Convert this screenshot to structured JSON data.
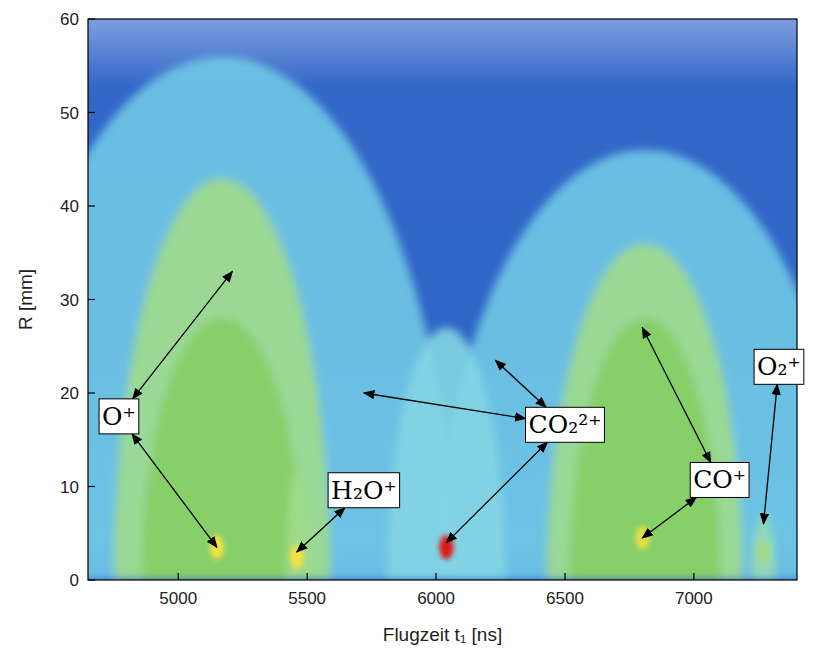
{
  "chart_data": {
    "type": "heatmap",
    "x_label": "Flugzeit t₁ [ns]",
    "y_label": "R [mm]",
    "xlim": [
      4650,
      7400
    ],
    "ylim": [
      0,
      60
    ],
    "xticks": [
      5000,
      5500,
      6000,
      6500,
      7000
    ],
    "yticks": [
      0,
      10,
      20,
      30,
      40,
      50,
      60
    ],
    "arcs": [
      {
        "t_center": 5170,
        "t_half_width": 900,
        "r_max": 56,
        "level": 0.32
      },
      {
        "t_center": 6810,
        "t_half_width": 800,
        "r_max": 46,
        "level": 0.32
      },
      {
        "t_center": 6040,
        "t_half_width": 230,
        "r_max": 27,
        "level": 0.36
      },
      {
        "t_center": 5170,
        "t_half_width": 420,
        "r_max": 43,
        "level": 0.5
      },
      {
        "t_center": 5170,
        "t_half_width": 310,
        "r_max": 28,
        "level": 0.58
      },
      {
        "t_center": 6810,
        "t_half_width": 380,
        "r_max": 36,
        "level": 0.5
      },
      {
        "t_center": 6810,
        "t_half_width": 290,
        "r_max": 28,
        "level": 0.58
      },
      {
        "t_center": 5460,
        "t_half_width": 45,
        "r_max": 12,
        "level": 0.5
      },
      {
        "t_center": 7270,
        "t_half_width": 45,
        "r_max": 7,
        "level": 0.45
      }
    ],
    "spots": [
      {
        "t": 5150,
        "r": 3.5,
        "level": 0.85
      },
      {
        "t": 5460,
        "r": 2.5,
        "level": 0.85
      },
      {
        "t": 6040,
        "r": 3.5,
        "level": 1.0
      },
      {
        "t": 6800,
        "r": 4.5,
        "level": 0.82
      },
      {
        "t": 7270,
        "r": 3,
        "level": 0.5
      }
    ],
    "annotations": [
      {
        "text": "O⁺",
        "t": 4770,
        "r": 17.5,
        "targets": [
          [
            5210,
            33
          ],
          [
            5150,
            3.5
          ]
        ]
      },
      {
        "text": "H₂O⁺",
        "t": 5720,
        "r": 9.6,
        "targets": [
          [
            5460,
            3
          ]
        ]
      },
      {
        "text": "CO₂²⁺",
        "t": 6500,
        "r": 16.6,
        "targets": [
          [
            5720,
            20
          ],
          [
            6230,
            23.5
          ],
          [
            6040,
            4
          ]
        ]
      },
      {
        "text": "CO⁺",
        "t": 7100,
        "r": 10.7,
        "targets": [
          [
            6800,
            27
          ],
          [
            6800,
            4.5
          ]
        ]
      },
      {
        "text": "O₂⁺",
        "t": 7330,
        "r": 22.8,
        "targets": [
          [
            7270,
            6
          ]
        ]
      }
    ]
  }
}
